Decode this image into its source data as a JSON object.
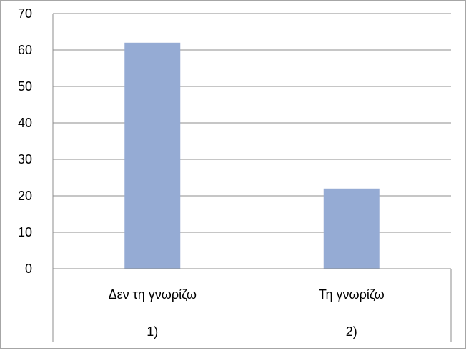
{
  "chart_data": {
    "type": "bar",
    "categories": [
      {
        "label": "Δεν τη γνωρίζω",
        "index": "1)"
      },
      {
        "label": "Τη γνωρίζω",
        "index": "2)"
      }
    ],
    "values": [
      62,
      22
    ],
    "ylim": [
      0,
      70
    ],
    "yticks": [
      0,
      10,
      20,
      30,
      40,
      50,
      60,
      70
    ],
    "grid": true,
    "legend": "none",
    "bar_color": "#95abd4",
    "grid_color": "#8c8c8c",
    "axis_color": "#8c8c8c"
  }
}
